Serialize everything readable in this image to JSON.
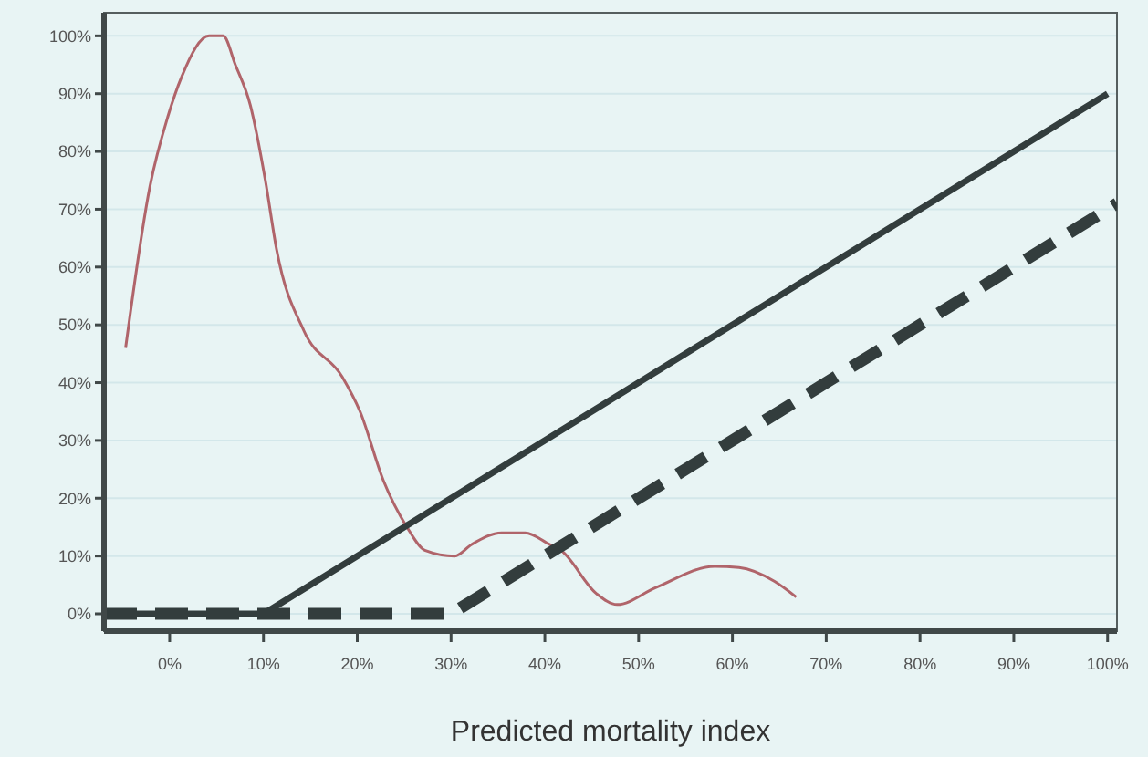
{
  "chart_data": {
    "type": "line",
    "xlabel": "Predicted mortality index",
    "xlim": [
      -7,
      101
    ],
    "ylim": [
      -3,
      104
    ],
    "xticks": [
      {
        "value": 0,
        "label": "0%"
      },
      {
        "value": 10,
        "label": "10%"
      },
      {
        "value": 20,
        "label": "20%"
      },
      {
        "value": 30,
        "label": "30%"
      },
      {
        "value": 40,
        "label": "40%"
      },
      {
        "value": 50,
        "label": "50%"
      },
      {
        "value": 60,
        "label": "60%"
      },
      {
        "value": 70,
        "label": "70%"
      },
      {
        "value": 80,
        "label": "80%"
      },
      {
        "value": 90,
        "label": "90%"
      },
      {
        "value": 100,
        "label": "100%"
      }
    ],
    "yticks": [
      {
        "value": 0,
        "label": "0%"
      },
      {
        "value": 10,
        "label": "10%"
      },
      {
        "value": 20,
        "label": "20%"
      },
      {
        "value": 30,
        "label": "30%"
      },
      {
        "value": 40,
        "label": "40%"
      },
      {
        "value": 50,
        "label": "50%"
      },
      {
        "value": 60,
        "label": "60%"
      },
      {
        "value": 70,
        "label": "70%"
      },
      {
        "value": 80,
        "label": "80%"
      },
      {
        "value": 90,
        "label": "90%"
      },
      {
        "value": 100,
        "label": "100%"
      }
    ],
    "grid": "y",
    "marker": "none",
    "series": [
      {
        "color": "#b0646a",
        "line_style": "solid",
        "x": [
          -4.7,
          -2.1,
          -0.2,
          1.3,
          4.2,
          5.7,
          7.0,
          8.6,
          10.2,
          11.4,
          14.3,
          18.4,
          20.3,
          22.8,
          25.3,
          27.2,
          30.4,
          32.2,
          35.4,
          37.9,
          40.5,
          41.7,
          45.5,
          47.7,
          51.8,
          58.1,
          60.7,
          64.5,
          66.8
        ],
        "values": [
          46,
          74,
          86,
          93,
          100,
          100,
          95,
          88,
          75,
          63,
          49,
          41,
          35,
          23,
          15,
          11,
          10,
          12,
          14,
          14,
          12,
          11,
          3.5,
          1.6,
          4.5,
          8.2,
          8,
          5.6,
          2.9
        ]
      },
      {
        "color": "#333d3d",
        "line_style": "solid",
        "x": [
          -7,
          10,
          100
        ],
        "values": [
          0,
          0,
          90
        ]
      },
      {
        "color": "#333d3d",
        "line_style": "dashed",
        "x": [
          -7,
          30,
          101
        ],
        "values": [
          0,
          0,
          71
        ]
      }
    ]
  }
}
